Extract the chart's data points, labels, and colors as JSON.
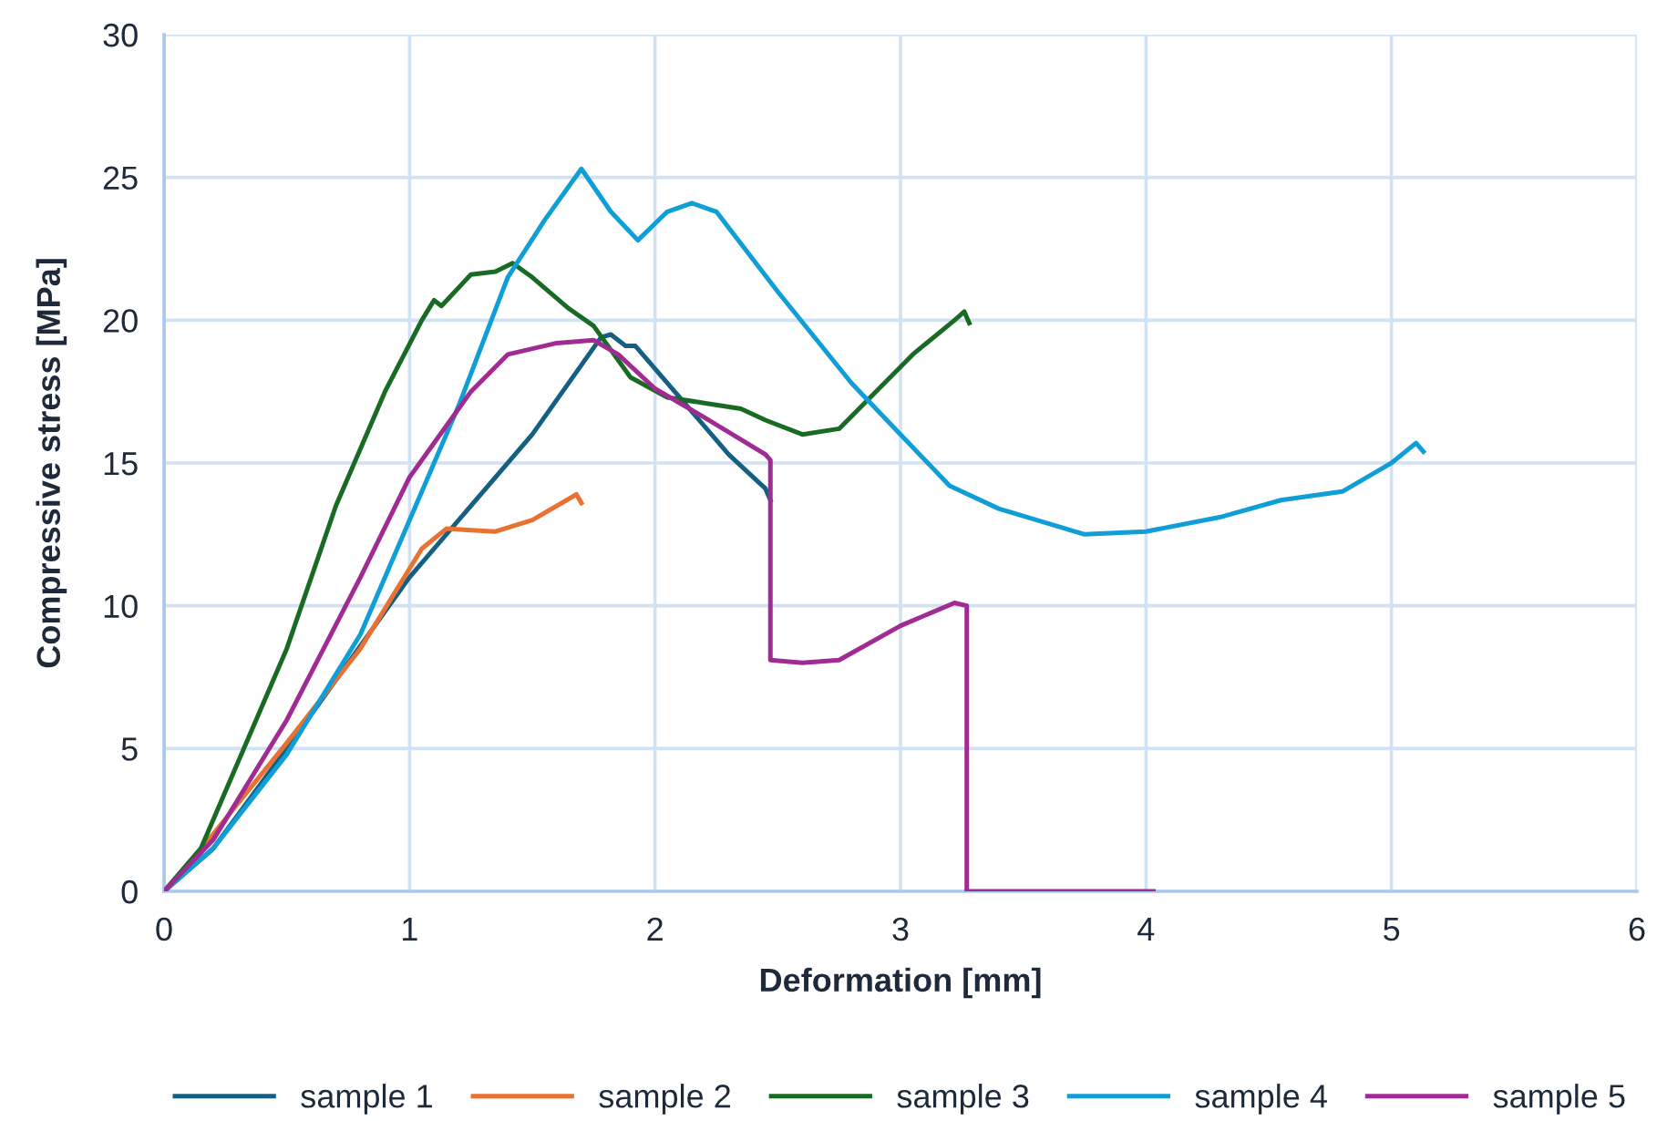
{
  "chart_data": {
    "type": "line",
    "xlabel": "Deformation [mm]",
    "ylabel": "Compressive stress [MPa]",
    "xlim": [
      0,
      6
    ],
    "xticks": [
      0,
      1,
      2,
      3,
      4,
      5,
      6
    ],
    "ylim": [
      0,
      30
    ],
    "yticks": [
      0,
      5,
      10,
      15,
      20,
      25,
      30
    ],
    "grid": true,
    "legend": "bottom",
    "marker": "none",
    "line_style": "solid",
    "series": [
      {
        "name": "sample 1",
        "color": "#156082",
        "x": [
          0,
          0.2,
          0.5,
          1,
          1.5,
          1.78,
          1.82,
          1.88,
          1.92,
          2.1,
          2.3,
          2.45,
          2.47
        ],
        "values": [
          0,
          1.5,
          5,
          11,
          16,
          19.4,
          19.5,
          19.1,
          19.1,
          17.3,
          15.3,
          14.1,
          13.7
        ]
      },
      {
        "name": "sample 2",
        "color": "#e97132",
        "x": [
          0,
          0.2,
          0.5,
          0.8,
          1.05,
          1.15,
          1.35,
          1.5,
          1.68,
          1.7
        ],
        "values": [
          0,
          2,
          5.2,
          8.5,
          12,
          12.7,
          12.6,
          13.0,
          13.9,
          13.6
        ]
      },
      {
        "name": "sample 3",
        "color": "#196b24",
        "x": [
          0,
          0.15,
          0.3,
          0.5,
          0.7,
          0.9,
          1.05,
          1.1,
          1.13,
          1.25,
          1.35,
          1.42,
          1.5,
          1.65,
          1.75,
          1.9,
          2.05,
          2.2,
          2.35,
          2.45,
          2.6,
          2.75,
          2.9,
          3.05,
          3.22,
          3.26,
          3.28
        ],
        "values": [
          0,
          1.5,
          4.5,
          8.5,
          13.5,
          17.5,
          20,
          20.7,
          20.5,
          21.6,
          21.7,
          22,
          21.5,
          20.4,
          19.8,
          18,
          17.3,
          17.1,
          16.9,
          16.5,
          16,
          16.2,
          17.5,
          18.8,
          20,
          20.3,
          19.9
        ]
      },
      {
        "name": "sample 4",
        "color": "#0f9ed5",
        "x": [
          0,
          0.2,
          0.5,
          0.8,
          1,
          1.2,
          1.4,
          1.55,
          1.7,
          1.82,
          1.93,
          2.05,
          2.15,
          2.25,
          2.5,
          2.8,
          3.0,
          3.2,
          3.4,
          3.75,
          4.0,
          4.3,
          4.55,
          4.8,
          5.0,
          5.1,
          5.13
        ],
        "values": [
          0,
          1.5,
          4.8,
          9,
          13,
          17,
          21.5,
          23.5,
          25.3,
          23.8,
          22.8,
          23.8,
          24.1,
          23.8,
          21,
          17.8,
          16,
          14.2,
          13.4,
          12.5,
          12.6,
          13.1,
          13.7,
          14,
          15,
          15.7,
          15.4
        ]
      },
      {
        "name": "sample 5",
        "color": "#a02b93",
        "x": [
          0,
          0.2,
          0.5,
          0.8,
          1.0,
          1.1,
          1.25,
          1.4,
          1.6,
          1.75,
          1.85,
          2.0,
          2.2,
          2.45,
          2.47,
          2.47,
          2.6,
          2.75,
          3.0,
          3.22,
          3.27,
          3.27,
          4.03
        ],
        "values": [
          0,
          1.8,
          6,
          11,
          14.5,
          15.7,
          17.5,
          18.8,
          19.2,
          19.3,
          18.8,
          17.6,
          16.6,
          15.3,
          15.1,
          8.1,
          8.0,
          8.1,
          9.3,
          10.1,
          10.0,
          0,
          0
        ]
      }
    ]
  }
}
